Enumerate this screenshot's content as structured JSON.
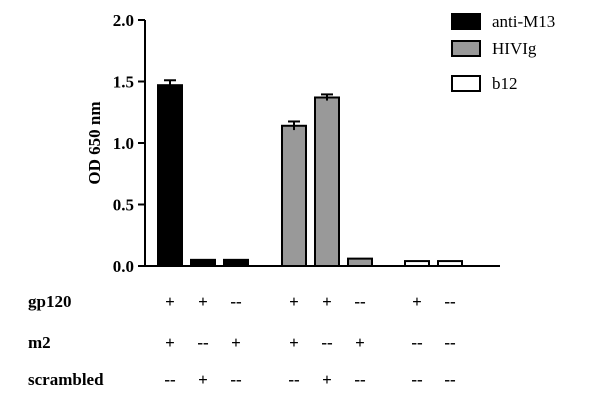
{
  "chart_data": {
    "type": "bar",
    "ylabel": "OD 650 nm",
    "xlabel": "",
    "title": "",
    "ylim": [
      0,
      2.0
    ],
    "yticks": [
      0.0,
      0.5,
      1.0,
      1.5,
      2.0
    ],
    "ytick_labels": [
      "0.0",
      "0.5",
      "1.0",
      "1.5",
      "2.0"
    ],
    "grid": false,
    "legend_position": "top-right",
    "series": [
      {
        "name": "anti-M13",
        "color": "#000000",
        "values": [
          1.47,
          0.05,
          0.05
        ],
        "errors": [
          0.04,
          0.0,
          0.0
        ]
      },
      {
        "name": "HIVIg",
        "color": "#999999",
        "values": [
          1.14,
          1.37,
          0.06
        ],
        "errors": [
          0.035,
          0.025,
          0.0
        ]
      },
      {
        "name": "b12",
        "color": "#ffffff",
        "values": [
          0.04,
          0.04
        ],
        "errors": [
          0.0,
          0.0
        ]
      }
    ],
    "conditions": [
      {
        "label": "gp120",
        "marks": [
          [
            "+",
            "+",
            "--"
          ],
          [
            "+",
            "+",
            "--"
          ],
          [
            "+",
            "--"
          ]
        ]
      },
      {
        "label": "m2",
        "marks": [
          [
            "+",
            "--",
            "+"
          ],
          [
            "+",
            "--",
            "+"
          ],
          [
            "--",
            "--"
          ]
        ]
      },
      {
        "label": "scrambled",
        "marks": [
          [
            "--",
            "+",
            "--"
          ],
          [
            "--",
            "+",
            "--"
          ],
          [
            "--",
            "--"
          ]
        ]
      }
    ]
  }
}
